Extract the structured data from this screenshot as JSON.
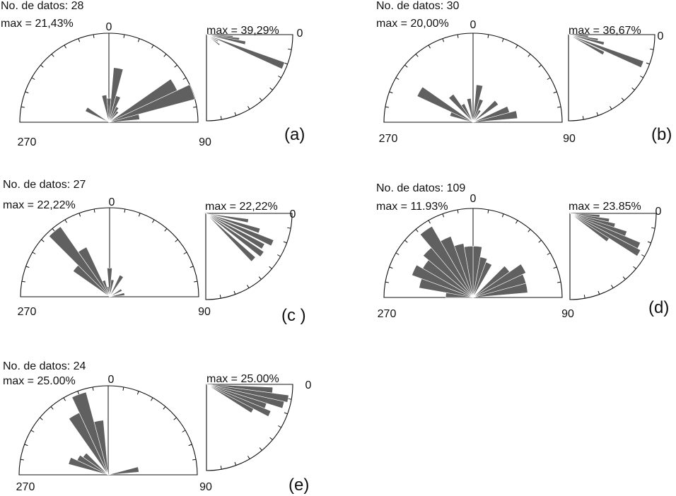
{
  "chart_data": [
    {
      "type": "rose",
      "panel_label": "(a)",
      "n_text": "No. de datos: 28",
      "max_text": "max = 21,43%",
      "dir_labels": {
        "top": "0",
        "left": "270",
        "right": "90"
      },
      "bins": [
        {
          "azimuth": 10,
          "value": 80
        },
        {
          "azimuth": 20,
          "value": 40
        },
        {
          "azimuth": 30,
          "value": 25
        },
        {
          "azimuth": 40,
          "value": 20
        },
        {
          "azimuth": 60,
          "value": 110
        },
        {
          "azimuth": 70,
          "value": 130
        },
        {
          "azimuth": 80,
          "value": 45
        },
        {
          "azimuth": 0,
          "value": 35
        },
        {
          "azimuth": -10,
          "value": 40
        },
        {
          "azimuth": -60,
          "value": 38
        }
      ],
      "dip": {
        "max_text": "max = 39,29%",
        "zero_label": "0",
        "bins": [
          {
            "angle": 5,
            "value": 40
          },
          {
            "angle": 8,
            "value": 50
          },
          {
            "angle": 12,
            "value": 60
          },
          {
            "angle": 22,
            "value": 125
          },
          {
            "angle": 30,
            "value": 20
          },
          {
            "angle": 38,
            "value": 25
          }
        ]
      }
    },
    {
      "type": "rose",
      "panel_label": "(b)",
      "n_text": "No. de datos: 30",
      "max_text": "max = 20,00%",
      "dir_labels": {
        "top": "0",
        "left": "270",
        "right": "90"
      },
      "bins": [
        {
          "azimuth": 10,
          "value": 55
        },
        {
          "azimuth": 20,
          "value": 35
        },
        {
          "azimuth": 30,
          "value": 20
        },
        {
          "azimuth": 50,
          "value": 45
        },
        {
          "azimuth": 70,
          "value": 55
        },
        {
          "azimuth": 80,
          "value": 65
        },
        {
          "azimuth": -10,
          "value": 35
        },
        {
          "azimuth": -30,
          "value": 30
        },
        {
          "azimuth": -40,
          "value": 50
        },
        {
          "azimuth": -60,
          "value": 90
        },
        {
          "azimuth": -70,
          "value": 35
        }
      ],
      "dip": {
        "max_text": "max = 36,67%",
        "zero_label": "0",
        "bins": [
          {
            "angle": 5,
            "value": 30
          },
          {
            "angle": 10,
            "value": 45
          },
          {
            "angle": 14,
            "value": 55
          },
          {
            "angle": 22,
            "value": 120
          },
          {
            "angle": 28,
            "value": 60
          }
        ]
      }
    },
    {
      "type": "rose",
      "panel_label": "(c )",
      "n_text": "No. de datos: 27",
      "max_text": "max = 22,22%",
      "dir_labels": {
        "top": "0",
        "left": "270",
        "right": "90"
      },
      "bins": [
        {
          "azimuth": 0,
          "value": 42
        },
        {
          "azimuth": 10,
          "value": 25
        },
        {
          "azimuth": 30,
          "value": 35
        },
        {
          "azimuth": 60,
          "value": 20
        },
        {
          "azimuth": 80,
          "value": 22
        },
        {
          "azimuth": -10,
          "value": 15
        },
        {
          "azimuth": -20,
          "value": 25
        },
        {
          "azimuth": -30,
          "value": 80
        },
        {
          "azimuth": -40,
          "value": 125
        },
        {
          "azimuth": -50,
          "value": 65
        }
      ],
      "dip": {
        "max_text": "max = 22,22%",
        "zero_label": "0",
        "bins": [
          {
            "angle": 10,
            "value": 65
          },
          {
            "angle": 18,
            "value": 85
          },
          {
            "angle": 24,
            "value": 110
          },
          {
            "angle": 30,
            "value": 100
          },
          {
            "angle": 36,
            "value": 105
          },
          {
            "angle": 44,
            "value": 100
          }
        ]
      }
    },
    {
      "type": "rose",
      "panel_label": "(d)",
      "n_text": "No. de datos: 109",
      "max_text": "max = 11.93%",
      "dir_labels": {
        "top": "0",
        "left": "270",
        "right": "90"
      },
      "bins": [
        {
          "azimuth": 5,
          "value": 75
        },
        {
          "azimuth": 15,
          "value": 60
        },
        {
          "azimuth": 25,
          "value": 55
        },
        {
          "azimuth": 50,
          "value": 65
        },
        {
          "azimuth": 60,
          "value": 85
        },
        {
          "azimuth": 70,
          "value": 80
        },
        {
          "azimuth": 80,
          "value": 80
        },
        {
          "azimuth": -5,
          "value": 75
        },
        {
          "azimuth": -15,
          "value": 80
        },
        {
          "azimuth": -25,
          "value": 95
        },
        {
          "azimuth": -35,
          "value": 120
        },
        {
          "azimuth": -45,
          "value": 95
        },
        {
          "azimuth": -55,
          "value": 85
        },
        {
          "azimuth": -65,
          "value": 95
        },
        {
          "azimuth": -75,
          "value": 80
        },
        {
          "azimuth": -85,
          "value": 40
        }
      ],
      "dip": {
        "max_text": "max = 23.85%",
        "zero_label": "0",
        "bins": [
          {
            "angle": 5,
            "value": 45
          },
          {
            "angle": 10,
            "value": 60
          },
          {
            "angle": 15,
            "value": 70
          },
          {
            "angle": 20,
            "value": 90
          },
          {
            "angle": 25,
            "value": 115
          },
          {
            "angle": 30,
            "value": 120
          },
          {
            "angle": 35,
            "value": 70
          }
        ]
      }
    },
    {
      "type": "rose",
      "panel_label": "(e)",
      "n_text": "No. de datos: 24",
      "max_text": "max = 25.00%",
      "dir_labels": {
        "top": "0",
        "left": "270",
        "right": "90"
      },
      "bins": [
        {
          "azimuth": 80,
          "value": 45
        },
        {
          "azimuth": -10,
          "value": 80
        },
        {
          "azimuth": -20,
          "value": 125
        },
        {
          "azimuth": -30,
          "value": 100
        },
        {
          "azimuth": -50,
          "value": 45
        },
        {
          "azimuth": -60,
          "value": 50
        },
        {
          "azimuth": -70,
          "value": 60
        }
      ],
      "dip": {
        "max_text": "max = 25.00%",
        "zero_label": "0",
        "bins": [
          {
            "angle": 5,
            "value": 100
          },
          {
            "angle": 10,
            "value": 125
          },
          {
            "angle": 15,
            "value": 120
          },
          {
            "angle": 20,
            "value": 95
          },
          {
            "angle": 25,
            "value": 105
          },
          {
            "angle": 30,
            "value": 80
          }
        ]
      }
    }
  ]
}
